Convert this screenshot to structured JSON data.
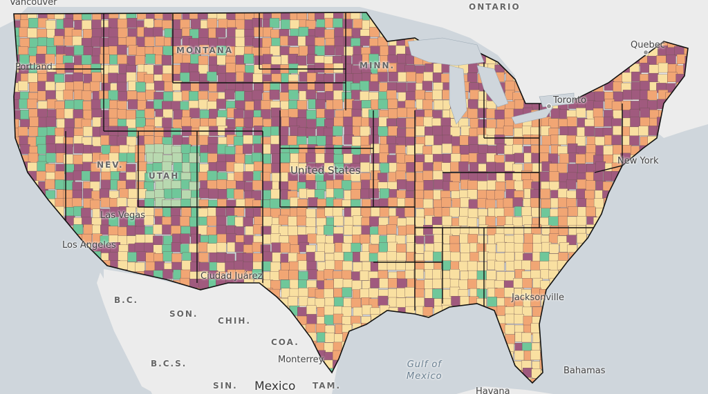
{
  "map": {
    "colors": {
      "water": "#cfd6dc",
      "land": "#ececec",
      "purple": "#a05a7e",
      "orange": "#f1a674",
      "yellow": "#f9e0a1",
      "green": "#6fc79a",
      "paleGreen": "#b8d9b0",
      "countyLine": "#6b4f4f",
      "stateLine": "#111111"
    },
    "labels": {
      "ontario": "ONTARIO",
      "quebec": "Quebec",
      "vancouver": "Vancouver",
      "toronto": "Toronto",
      "new_york": "New York",
      "las_vegas": "Las Vegas",
      "los_angeles": "Los Angeles",
      "ciudad_juarez": "Ciudad Juárez",
      "united_states": "United States",
      "portland": "Portland",
      "montana": "MONTANA",
      "utah": "UTAH",
      "nevada": "NEV.",
      "minnesota": "MINN.",
      "bc": "B.C.",
      "son": "SON.",
      "chih": "CHIH.",
      "coa": "COA.",
      "bcs": "B.C.S.",
      "sin": "SIN.",
      "tam": "TAM.",
      "monterrey": "Monterrey",
      "mexico": "Mexico",
      "gulf_of_mexico": "Gulf of\nMexico",
      "bahamas": "Bahamas",
      "jacksonville": "Jacksonville",
      "havana": "Havana"
    }
  }
}
